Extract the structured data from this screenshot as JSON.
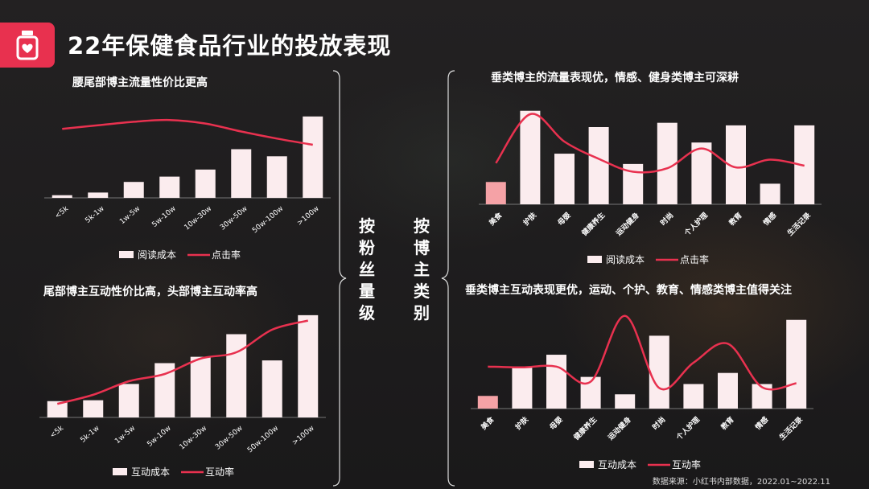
{
  "title": "22年保健食品行业的投放表现",
  "source": "数据来源：小红书内部数据，2022.01~2022.11",
  "mid_labels": {
    "left": "按粉丝量级",
    "right": "按博主类别"
  },
  "colors": {
    "bar": "#fbecee",
    "bar_highlight": "#f5a2a6",
    "line": "#e8314f",
    "logo": "#e8314f"
  },
  "icons": {
    "logo": "bottle-heart-icon"
  },
  "chart_data": [
    {
      "type": "bar",
      "title": "腰尾部博主流量性价比更高",
      "categories": [
        "<5k",
        "5k-1w",
        "1w-5w",
        "5w-10w",
        "10w-30w",
        "30w-50w",
        "50w-100w",
        ">100w"
      ],
      "series": [
        {
          "name": "阅读成本",
          "type": "bar",
          "values": [
            3,
            6,
            18,
            24,
            32,
            55,
            47,
            92
          ]
        },
        {
          "name": "点击率",
          "type": "line",
          "values": [
            78,
            82,
            86,
            88,
            84,
            75,
            67,
            60
          ]
        }
      ],
      "ylim": [
        0,
        100
      ]
    },
    {
      "type": "bar",
      "title": "尾部博主互动性价比高，头部博主互动率高",
      "categories": [
        "<5k",
        "5k-1w",
        "1w-5w",
        "5w-10w",
        "10w-30w",
        "30w-50w",
        "50w-100w",
        ">100w"
      ],
      "series": [
        {
          "name": "互动成本",
          "type": "bar",
          "values": [
            18,
            19,
            37,
            60,
            67,
            92,
            63,
            113
          ]
        },
        {
          "name": "互动率",
          "type": "line",
          "values": [
            15,
            25,
            40,
            48,
            65,
            72,
            97,
            107
          ]
        }
      ],
      "ylim": [
        0,
        120
      ]
    },
    {
      "type": "bar",
      "title": "垂类博主的流量表现优，情感、健身类博主可深耕",
      "categories": [
        "美食",
        "护肤",
        "母婴",
        "健康养生",
        "运动健身",
        "时尚",
        "个人护理",
        "教育",
        "情感",
        "生活记录"
      ],
      "series": [
        {
          "name": "阅读成本",
          "type": "bar",
          "values": [
            26,
            109,
            59,
            90,
            47,
            95,
            72,
            92,
            24,
            92
          ]
        },
        {
          "name": "点击率",
          "type": "line",
          "values": [
            48,
            105,
            73,
            53,
            38,
            42,
            65,
            43,
            52,
            45
          ]
        }
      ],
      "ylim": [
        0,
        120
      ]
    },
    {
      "type": "bar",
      "title": "垂类博主互动表现更优，运动、个护、教育、情感类博主值得关注",
      "categories": [
        "美食",
        "护肤",
        "母婴",
        "健康养生",
        "运动健身",
        "时尚",
        "个人护理",
        "教育",
        "情感",
        "生活记录"
      ],
      "series": [
        {
          "name": "互动成本",
          "type": "bar",
          "values": [
            16,
            53,
            68,
            40,
            18,
            92,
            31,
            45,
            31,
            112
          ]
        },
        {
          "name": "互动率",
          "type": "line",
          "values": [
            53,
            52,
            53,
            34,
            117,
            26,
            58,
            82,
            27,
            32
          ]
        }
      ],
      "ylim": [
        0,
        130
      ]
    }
  ]
}
